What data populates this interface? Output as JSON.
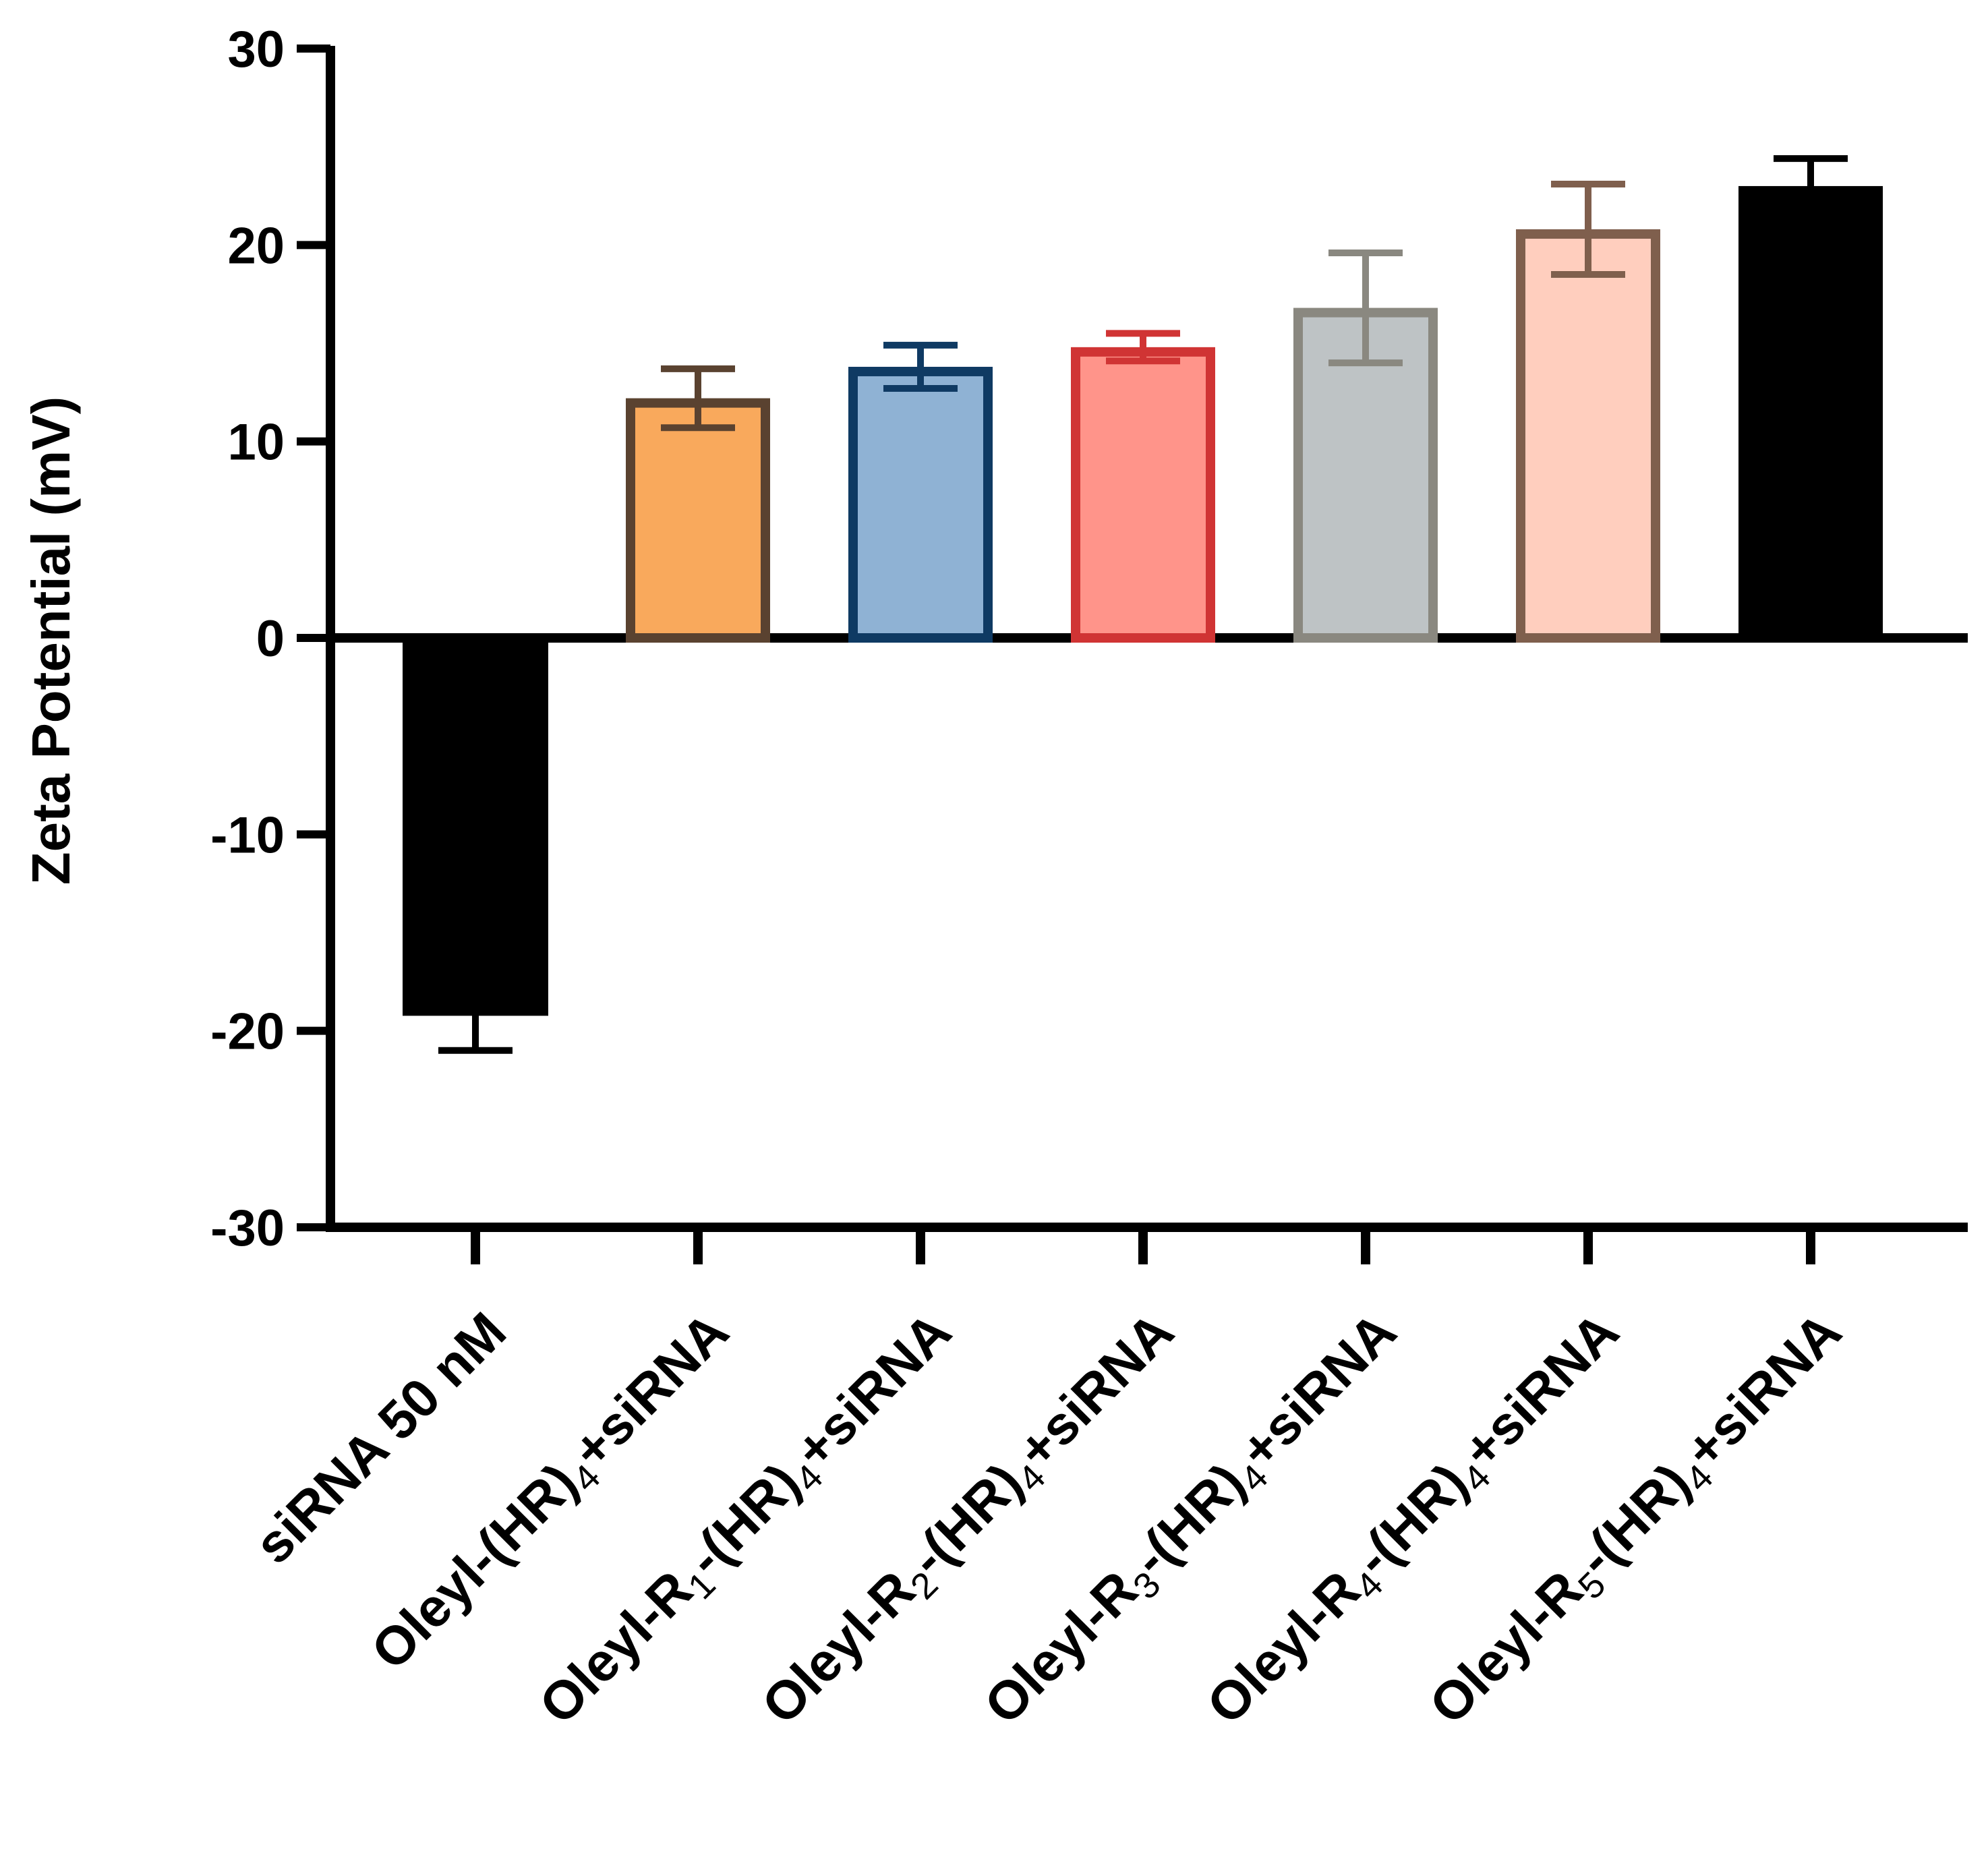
{
  "chart_data": {
    "type": "bar",
    "title": "",
    "xlabel": "",
    "ylabel": "Zeta Potential (mV)",
    "ylim": [
      -30,
      30
    ],
    "yticks": [
      30,
      20,
      10,
      0,
      -10,
      -20,
      -30
    ],
    "grid": false,
    "categories": [
      {
        "prefix": "siRNA 50 nM",
        "sub_r": "",
        "suffix": ""
      },
      {
        "prefix": "Oleyl-(HR)",
        "sub_r": "",
        "suffix": "4+siRNA"
      },
      {
        "prefix": "Oleyl-R",
        "sub_r": "1",
        "suffix": "4+siRNA"
      },
      {
        "prefix": "Oleyl-R",
        "sub_r": "2",
        "suffix": "4+siRNA"
      },
      {
        "prefix": "Oleyl-R",
        "sub_r": "3",
        "suffix": "4+siRNA"
      },
      {
        "prefix": "Oleyl-R",
        "sub_r": "4",
        "suffix": "4+siRNA"
      },
      {
        "prefix": "Oleyl-R",
        "sub_r": "5",
        "suffix": "4+siRNA"
      }
    ],
    "category_text": [
      "siRNA 50 nM",
      "Oleyl-(HR)4+siRNA",
      "Oleyl-R1-(HR)4+siRNA",
      "Oleyl-R2-(HR)4+siRNA",
      "Oleyl-R3-(HR)4+siRNA",
      "Oleyl-R4-(HR)4+siRNA",
      "Oleyl-R5-(HR)4+siRNA"
    ],
    "values": [
      -19.2,
      12.2,
      13.8,
      14.8,
      16.8,
      20.8,
      23.0
    ],
    "errors": [
      1.8,
      1.5,
      1.1,
      0.7,
      2.8,
      2.3,
      1.4
    ],
    "colors": [
      {
        "fill": "#000000",
        "stroke": "#000000"
      },
      {
        "fill": "#F9A95C",
        "stroke": "#5A4230"
      },
      {
        "fill": "#8FB2D4",
        "stroke": "#0F3A63"
      },
      {
        "fill": "#FF948A",
        "stroke": "#D03434"
      },
      {
        "fill": "#BEC3C5",
        "stroke": "#8A8880"
      },
      {
        "fill": "#FFCEBE",
        "stroke": "#7F5F4D"
      },
      {
        "fill": "#000000",
        "stroke": "#000000"
      }
    ]
  }
}
